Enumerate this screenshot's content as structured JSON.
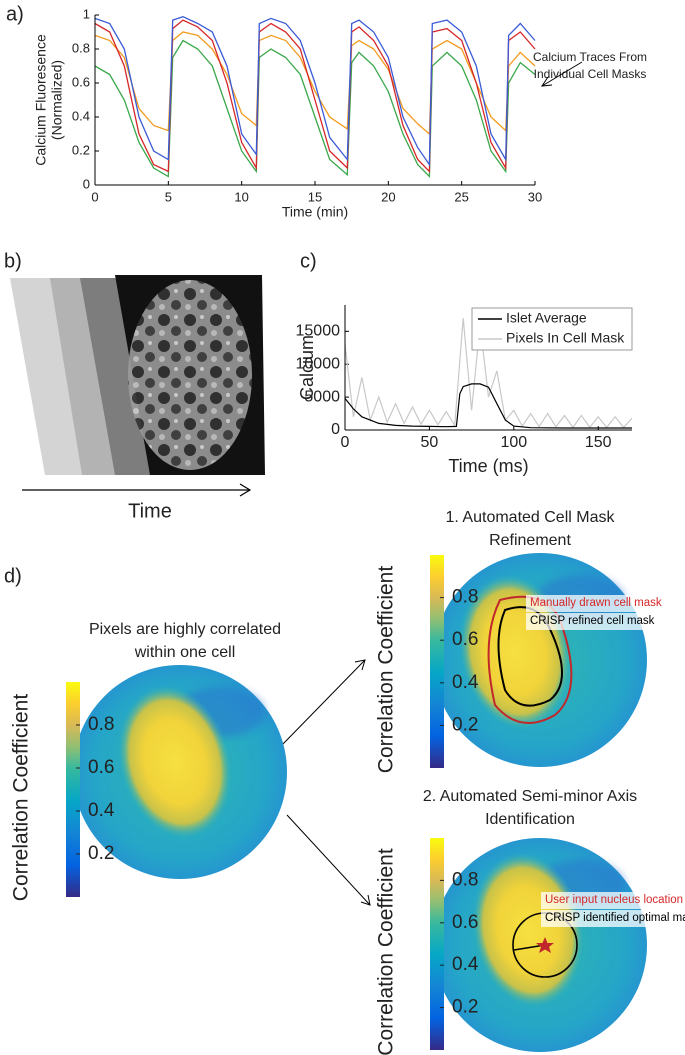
{
  "panel_labels": [
    "a)",
    "b)",
    "c)",
    "d)"
  ],
  "panel_b": {
    "xlabel": "Time"
  },
  "chart_data": [
    {
      "type": "line",
      "ylabel": [
        "Calcium Fluoresence",
        "(Normalized)"
      ],
      "xlabel": "Time (min)",
      "xlim": [
        0,
        30
      ],
      "ylim": [
        0,
        1
      ],
      "xticks": [
        0,
        5,
        10,
        15,
        20,
        25,
        30
      ],
      "yticks": [
        0,
        0.2,
        0.4,
        0.6,
        0.8,
        1
      ],
      "annotation": [
        "Calcium Traces From",
        "Individual Cell Masks"
      ],
      "x": [
        0,
        1,
        2,
        3,
        4,
        5,
        5.3,
        6,
        7,
        8,
        9,
        10,
        11,
        11.2,
        12,
        13,
        14,
        15,
        16,
        17.2,
        17.5,
        18,
        19,
        20,
        21,
        22,
        22.8,
        23,
        24,
        25,
        26,
        27,
        28,
        28.2,
        29,
        30
      ],
      "series": [
        {
          "color": "#f29b1f",
          "values": [
            0.88,
            0.85,
            0.75,
            0.45,
            0.35,
            0.32,
            0.85,
            0.9,
            0.88,
            0.8,
            0.65,
            0.42,
            0.35,
            0.85,
            0.88,
            0.85,
            0.75,
            0.55,
            0.4,
            0.33,
            0.82,
            0.85,
            0.8,
            0.68,
            0.45,
            0.36,
            0.3,
            0.8,
            0.85,
            0.8,
            0.6,
            0.4,
            0.32,
            0.7,
            0.78,
            0.7
          ]
        },
        {
          "color": "#3aa84a",
          "values": [
            0.7,
            0.65,
            0.5,
            0.25,
            0.1,
            0.05,
            0.75,
            0.85,
            0.8,
            0.7,
            0.45,
            0.2,
            0.08,
            0.75,
            0.8,
            0.75,
            0.65,
            0.4,
            0.15,
            0.06,
            0.72,
            0.78,
            0.7,
            0.55,
            0.3,
            0.12,
            0.05,
            0.7,
            0.78,
            0.7,
            0.5,
            0.2,
            0.08,
            0.6,
            0.72,
            0.65
          ]
        },
        {
          "color": "#d62728",
          "values": [
            0.95,
            0.9,
            0.7,
            0.3,
            0.12,
            0.08,
            0.92,
            0.97,
            0.93,
            0.85,
            0.6,
            0.25,
            0.1,
            0.9,
            0.95,
            0.9,
            0.8,
            0.5,
            0.2,
            0.1,
            0.9,
            0.93,
            0.85,
            0.7,
            0.35,
            0.15,
            0.08,
            0.9,
            0.92,
            0.85,
            0.6,
            0.25,
            0.1,
            0.85,
            0.9,
            0.8
          ]
        },
        {
          "color": "#3b5bd6",
          "values": [
            0.98,
            0.95,
            0.8,
            0.4,
            0.2,
            0.15,
            0.97,
            0.99,
            0.95,
            0.9,
            0.7,
            0.3,
            0.18,
            0.95,
            0.98,
            0.95,
            0.85,
            0.6,
            0.28,
            0.15,
            0.95,
            0.97,
            0.9,
            0.75,
            0.4,
            0.22,
            0.12,
            0.95,
            0.97,
            0.9,
            0.7,
            0.3,
            0.15,
            0.88,
            0.95,
            0.85
          ]
        }
      ]
    },
    {
      "type": "line",
      "ylabel": "Calcium",
      "xlabel": "Time (ms)",
      "xlim": [
        0,
        170
      ],
      "ylim": [
        0,
        19000
      ],
      "xticks": [
        0,
        50,
        100,
        150
      ],
      "yticks": [
        0,
        5000,
        10000,
        15000
      ],
      "legend": "upper right",
      "series": [
        {
          "name": "Islet Average",
          "color": "#000000",
          "x": [
            0,
            5,
            10,
            20,
            30,
            40,
            50,
            60,
            66,
            68,
            70,
            75,
            80,
            85,
            90,
            95,
            100,
            110,
            130,
            150,
            170
          ],
          "values": [
            4800,
            3200,
            2000,
            1000,
            700,
            600,
            550,
            500,
            550,
            5500,
            6600,
            7000,
            7000,
            6500,
            4000,
            1500,
            600,
            350,
            300,
            300,
            300
          ]
        },
        {
          "name": "Pixels In Cell Mask",
          "color": "#c8c8c8",
          "x": [
            0,
            5,
            10,
            15,
            20,
            25,
            30,
            35,
            40,
            45,
            50,
            55,
            60,
            65,
            70,
            75,
            80,
            85,
            90,
            95,
            100,
            105,
            110,
            115,
            120,
            125,
            130,
            135,
            140,
            145,
            150,
            155,
            160,
            165,
            170
          ],
          "values": [
            13000,
            2000,
            8000,
            1500,
            5000,
            1200,
            4000,
            1000,
            3500,
            900,
            3000,
            800,
            2800,
            700,
            17000,
            3000,
            16000,
            5000,
            9000,
            1500,
            3000,
            600,
            2500,
            500,
            2500,
            500,
            2200,
            400,
            2200,
            400,
            2000,
            400,
            2000,
            400,
            1800
          ]
        }
      ]
    },
    {
      "type": "heatmap",
      "title": [
        "Pixels are highly correlated",
        "within one cell"
      ],
      "ylabel": "Correlation Coefficient",
      "clim": [
        0,
        1
      ],
      "cticks": [
        0.2,
        0.4,
        0.6,
        0.8
      ]
    },
    {
      "type": "heatmap",
      "title": [
        "1. Automated Cell Mask",
        "Refinement"
      ],
      "ylabel": "Correlation Coefficient",
      "clim": [
        0,
        1
      ],
      "cticks": [
        0.2,
        0.4,
        0.6,
        0.8
      ],
      "annotations": [
        {
          "text": "Manually drawn cell mask",
          "color": "#d62728"
        },
        {
          "text": "CRISP refined cell mask",
          "color": "#000000"
        }
      ]
    },
    {
      "type": "heatmap",
      "title": [
        "2. Automated Semi-minor Axis",
        "Identification"
      ],
      "ylabel": "Correlation Coefficient",
      "clim": [
        0,
        1
      ],
      "cticks": [
        0.2,
        0.4,
        0.6,
        0.8
      ],
      "annotations": [
        {
          "text": "User input nucleus location",
          "color": "#d62728"
        },
        {
          "text": "CRISP identified optimal mask",
          "color": "#000000"
        }
      ]
    }
  ]
}
